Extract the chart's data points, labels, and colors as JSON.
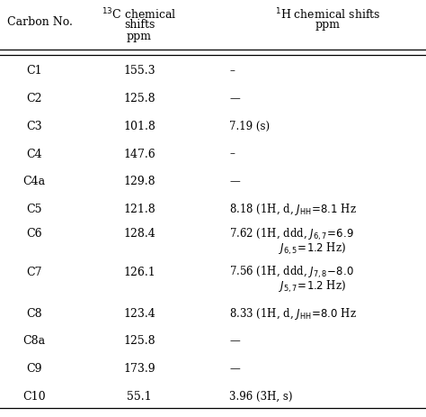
{
  "title_col1": "Carbon No.",
  "title_col2_line1": "$^{13}$C chemical",
  "title_col2_line2": "shifts",
  "title_col2_line3": "ppm",
  "title_col3_line1": "$^{1}$H chemical shifts",
  "title_col3_line2": "ppm",
  "rows": [
    {
      "carbon": "C1",
      "c13": "155.3",
      "h1": "–",
      "multiline": false
    },
    {
      "carbon": "C2",
      "c13": "125.8",
      "h1": "—",
      "multiline": false
    },
    {
      "carbon": "C3",
      "c13": "101.8",
      "h1": "7.19 (s)",
      "multiline": false
    },
    {
      "carbon": "C4",
      "c13": "147.6",
      "h1": "–",
      "multiline": false
    },
    {
      "carbon": "C4a",
      "c13": "129.8",
      "h1": "—",
      "multiline": false
    },
    {
      "carbon": "C5",
      "c13": "121.8",
      "h1_l1": "8.18 (1H, d, $J_{\\mathrm{HH}}\\!=\\!8.1$ Hz",
      "h1_l2": "",
      "multiline": false
    },
    {
      "carbon": "C6",
      "c13": "128.4",
      "h1_l1": "7.62 (1H, ddd, $J_{6,7}\\!=\\!6.9$",
      "h1_l2": "$J_{6,5}\\!=\\!1.2$ Hz)",
      "multiline": true
    },
    {
      "carbon": "C7",
      "c13": "126.1",
      "h1_l1": "7.56 (1H, ddd, $J_{7,8}\\!-\\!8.0$",
      "h1_l2": "$J_{5,7}\\!=\\!1.2$ Hz)",
      "multiline": true
    },
    {
      "carbon": "C8",
      "c13": "123.4",
      "h1_l1": "8.33 (1H, d, $J_{\\mathrm{HH}}\\!=\\!8.0$ Hz",
      "h1_l2": "",
      "multiline": false
    },
    {
      "carbon": "C8a",
      "c13": "125.8",
      "h1": "—",
      "multiline": false
    },
    {
      "carbon": "C9",
      "c13": "173.9",
      "h1": "—",
      "multiline": false
    },
    {
      "carbon": "C10",
      "c13": "55.1",
      "h1": "3.96 (3H, s)",
      "multiline": false
    }
  ],
  "font_size": 9,
  "text_color": "#000000",
  "bg_color": "#ffffff"
}
